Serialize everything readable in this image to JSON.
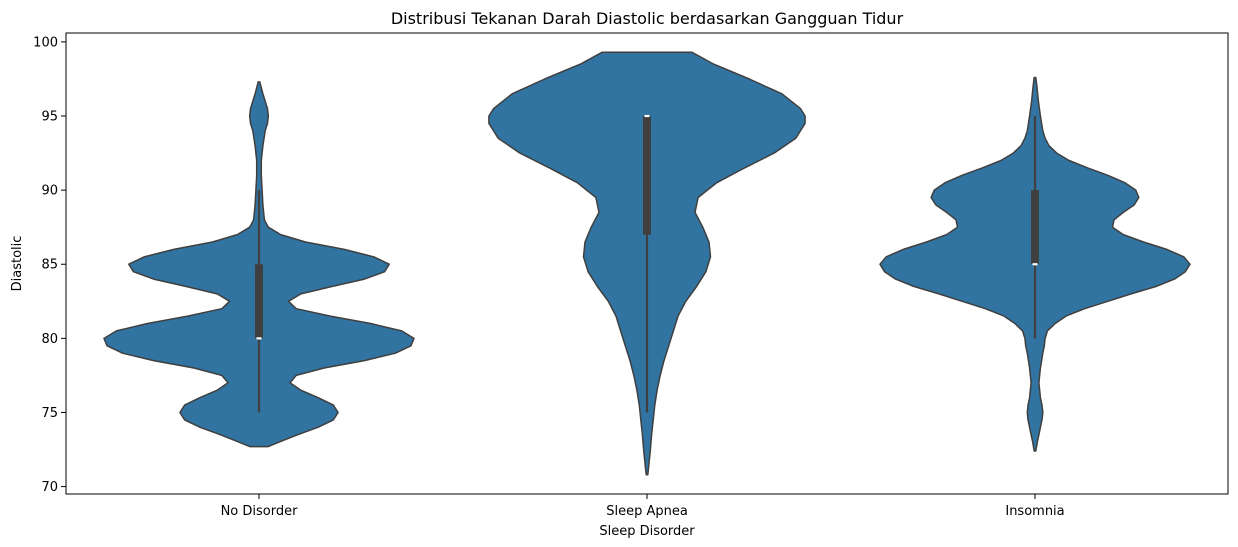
{
  "chart_data": {
    "type": "violin",
    "title": "Distribusi Tekanan Darah Diastolic berdasarkan Gangguan Tidur",
    "xlabel": "Sleep Disorder",
    "ylabel": "Diastolic",
    "categories": [
      "No Disorder",
      "Sleep Apnea",
      "Insomnia"
    ],
    "ylim": [
      69.5,
      100.6
    ],
    "yticks": [
      70,
      75,
      80,
      85,
      90,
      95,
      100
    ],
    "grid": false,
    "colors": {
      "fill": "#3274a1",
      "edge": "#3f3f3f",
      "box": "#3f3f3f",
      "median": "#ffffff"
    },
    "series": [
      {
        "category": "No Disorder",
        "box": {
          "whisker_low": 75,
          "q1": 80,
          "median": 80,
          "q3": 85,
          "whisker_high": 90
        },
        "density": [
          [
            72.7,
            0.06
          ],
          [
            73.0,
            0.13
          ],
          [
            73.5,
            0.25
          ],
          [
            74.0,
            0.38
          ],
          [
            74.5,
            0.48
          ],
          [
            75.0,
            0.51
          ],
          [
            75.5,
            0.48
          ],
          [
            76.0,
            0.38
          ],
          [
            76.5,
            0.27
          ],
          [
            77.0,
            0.2
          ],
          [
            77.5,
            0.24
          ],
          [
            78.0,
            0.42
          ],
          [
            78.5,
            0.68
          ],
          [
            79.0,
            0.88
          ],
          [
            79.5,
            0.98
          ],
          [
            80.0,
            1.0
          ],
          [
            80.5,
            0.92
          ],
          [
            81.0,
            0.72
          ],
          [
            81.5,
            0.46
          ],
          [
            82.0,
            0.24
          ],
          [
            82.5,
            0.19
          ],
          [
            83.0,
            0.27
          ],
          [
            83.5,
            0.47
          ],
          [
            84.0,
            0.68
          ],
          [
            84.5,
            0.81
          ],
          [
            85.0,
            0.84
          ],
          [
            85.5,
            0.74
          ],
          [
            86.0,
            0.55
          ],
          [
            86.5,
            0.3
          ],
          [
            87.0,
            0.14
          ],
          [
            87.5,
            0.06
          ],
          [
            88.0,
            0.035
          ],
          [
            89.0,
            0.025
          ],
          [
            90.0,
            0.02
          ],
          [
            91.0,
            0.015
          ],
          [
            92.0,
            0.015
          ],
          [
            93.0,
            0.025
          ],
          [
            94.0,
            0.04
          ],
          [
            94.5,
            0.055
          ],
          [
            95.0,
            0.06
          ],
          [
            95.5,
            0.055
          ],
          [
            96.0,
            0.04
          ],
          [
            96.5,
            0.025
          ],
          [
            97.3,
            0.005
          ]
        ]
      },
      {
        "category": "Sleep Apnea",
        "box": {
          "whisker_low": 75,
          "q1": 87,
          "median": 95,
          "q3": 95,
          "whisker_high": 95
        },
        "density": [
          [
            70.8,
            0.005
          ],
          [
            71.5,
            0.012
          ],
          [
            72.5,
            0.022
          ],
          [
            73.5,
            0.03
          ],
          [
            74.5,
            0.04
          ],
          [
            75.5,
            0.05
          ],
          [
            76.5,
            0.065
          ],
          [
            77.5,
            0.085
          ],
          [
            78.5,
            0.11
          ],
          [
            79.5,
            0.14
          ],
          [
            80.5,
            0.17
          ],
          [
            81.5,
            0.2
          ],
          [
            82.5,
            0.25
          ],
          [
            83.5,
            0.32
          ],
          [
            84.5,
            0.38
          ],
          [
            85.5,
            0.41
          ],
          [
            86.5,
            0.4
          ],
          [
            87.5,
            0.36
          ],
          [
            88.5,
            0.31
          ],
          [
            89.5,
            0.33
          ],
          [
            90.5,
            0.45
          ],
          [
            91.5,
            0.63
          ],
          [
            92.5,
            0.82
          ],
          [
            93.5,
            0.96
          ],
          [
            94.5,
            1.02
          ],
          [
            95.0,
            1.02
          ],
          [
            95.5,
            0.99
          ],
          [
            96.5,
            0.87
          ],
          [
            97.5,
            0.66
          ],
          [
            98.5,
            0.43
          ],
          [
            99.3,
            0.29
          ]
        ]
      },
      {
        "category": "Insomnia",
        "box": {
          "whisker_low": 80,
          "q1": 85,
          "median": 85,
          "q3": 90,
          "whisker_high": 95
        },
        "density": [
          [
            72.4,
            0.005
          ],
          [
            73.0,
            0.015
          ],
          [
            73.5,
            0.025
          ],
          [
            74.0,
            0.035
          ],
          [
            74.5,
            0.045
          ],
          [
            75.0,
            0.05
          ],
          [
            75.5,
            0.045
          ],
          [
            76.0,
            0.035
          ],
          [
            77.0,
            0.025
          ],
          [
            78.0,
            0.035
          ],
          [
            79.0,
            0.05
          ],
          [
            79.5,
            0.06
          ],
          [
            80.0,
            0.065
          ],
          [
            80.5,
            0.08
          ],
          [
            81.0,
            0.13
          ],
          [
            81.5,
            0.2
          ],
          [
            82.0,
            0.32
          ],
          [
            82.5,
            0.47
          ],
          [
            83.0,
            0.62
          ],
          [
            83.5,
            0.78
          ],
          [
            84.0,
            0.9
          ],
          [
            84.5,
            0.97
          ],
          [
            85.0,
            1.0
          ],
          [
            85.5,
            0.96
          ],
          [
            86.0,
            0.85
          ],
          [
            86.5,
            0.7
          ],
          [
            87.0,
            0.57
          ],
          [
            87.5,
            0.5
          ],
          [
            88.0,
            0.51
          ],
          [
            88.5,
            0.57
          ],
          [
            89.0,
            0.64
          ],
          [
            89.5,
            0.67
          ],
          [
            90.0,
            0.65
          ],
          [
            90.5,
            0.58
          ],
          [
            91.0,
            0.47
          ],
          [
            91.5,
            0.34
          ],
          [
            92.0,
            0.22
          ],
          [
            92.5,
            0.14
          ],
          [
            93.0,
            0.09
          ],
          [
            93.5,
            0.065
          ],
          [
            94.0,
            0.05
          ],
          [
            95.0,
            0.035
          ],
          [
            96.0,
            0.022
          ],
          [
            97.0,
            0.012
          ],
          [
            97.6,
            0.005
          ]
        ]
      }
    ]
  }
}
